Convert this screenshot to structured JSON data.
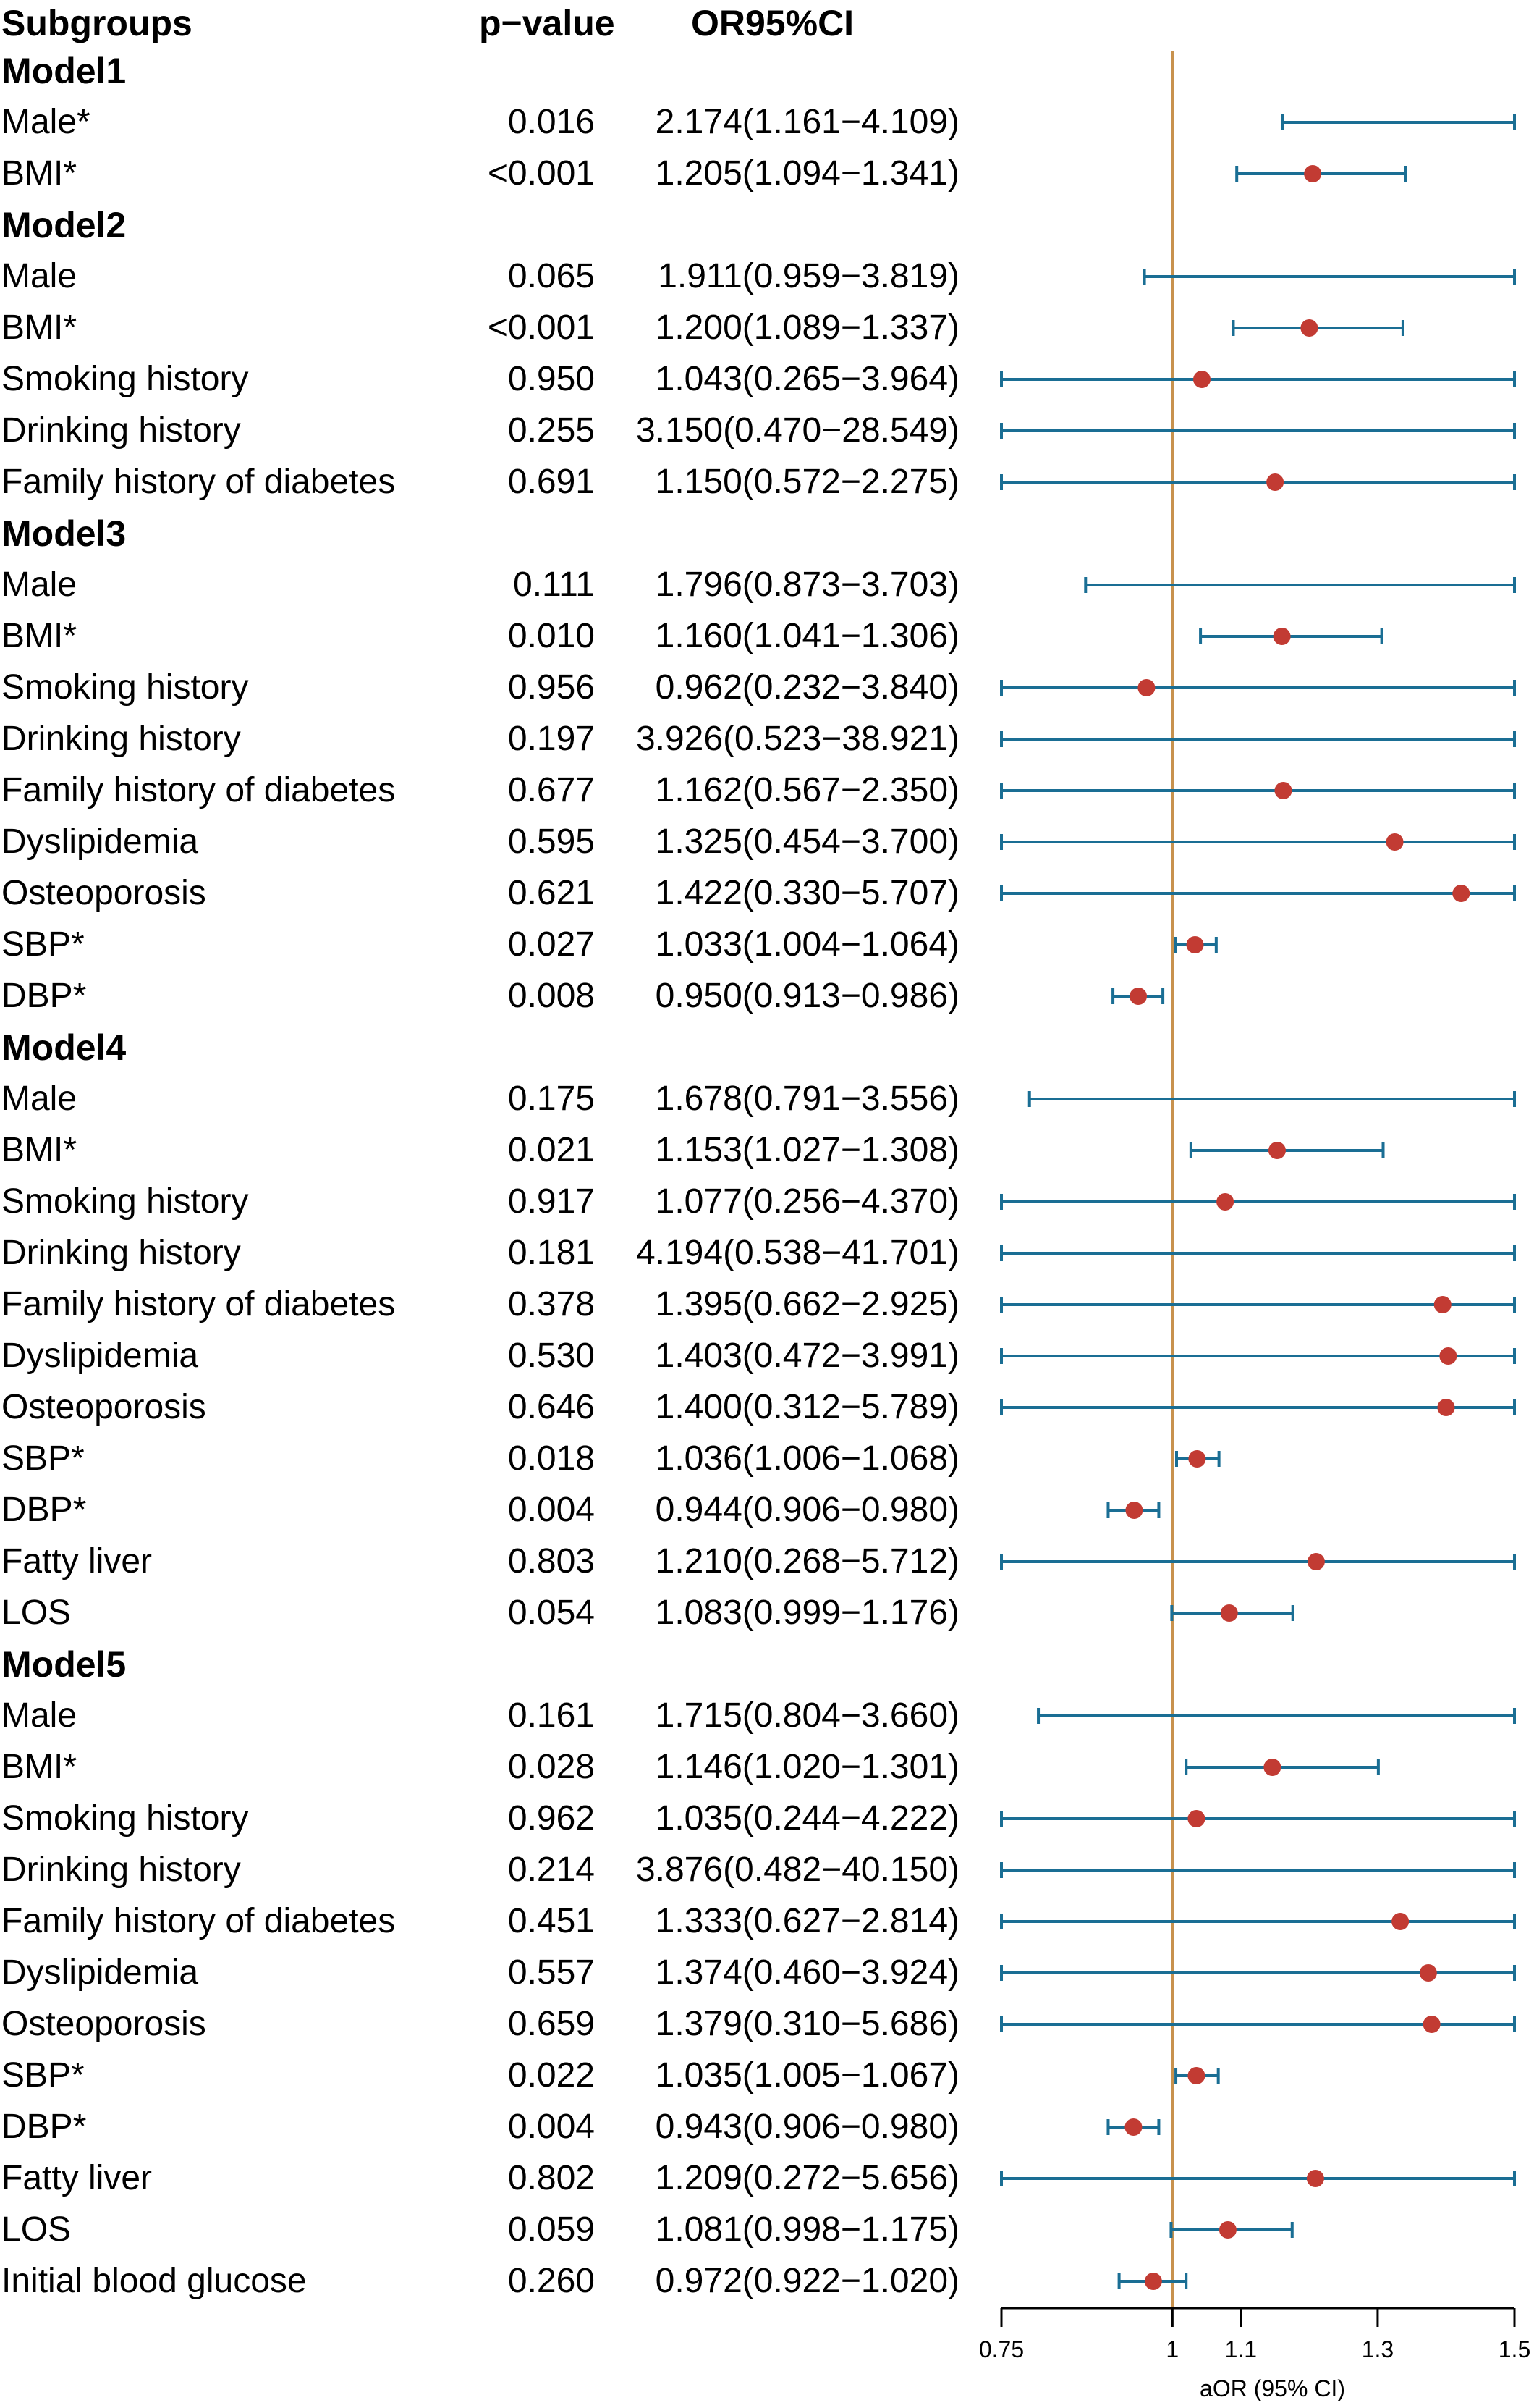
{
  "chart_data": {
    "type": "forest",
    "headers": {
      "subgroup": "Subgroups",
      "pvalue": "p−value",
      "or": "OR95%CI"
    },
    "xlabel": "aOR (95% CI)",
    "xlim": [
      0.75,
      1.5
    ],
    "reference_line": 1,
    "xticks": [
      {
        "value": 0.75,
        "label": "0.75"
      },
      {
        "value": 1,
        "label": "1"
      },
      {
        "value": 1.1,
        "label": "1.1"
      },
      {
        "value": 1.3,
        "label": "1.3"
      },
      {
        "value": 1.5,
        "label": "1.5"
      }
    ],
    "colors": {
      "ci_line": "#1a6e94",
      "point": "#c23b33",
      "reference": "#c8924e",
      "axis": "#000000"
    },
    "rows": [
      {
        "type": "group",
        "label": "Model1"
      },
      {
        "type": "item",
        "label": "Male*",
        "p": "0.016",
        "or_text": "2.174(1.161−4.109)",
        "or": 2.174,
        "lo": 1.161,
        "hi": 4.109
      },
      {
        "type": "item",
        "label": "BMI*",
        "p": "<0.001",
        "or_text": "1.205(1.094−1.341)",
        "or": 1.205,
        "lo": 1.094,
        "hi": 1.341
      },
      {
        "type": "group",
        "label": "Model2"
      },
      {
        "type": "item",
        "label": "Male",
        "p": "0.065",
        "or_text": "1.911(0.959−3.819)",
        "or": 1.911,
        "lo": 0.959,
        "hi": 3.819
      },
      {
        "type": "item",
        "label": "BMI*",
        "p": "<0.001",
        "or_text": "1.200(1.089−1.337)",
        "or": 1.2,
        "lo": 1.089,
        "hi": 1.337
      },
      {
        "type": "item",
        "label": "Smoking history",
        "p": "0.950",
        "or_text": "1.043(0.265−3.964)",
        "or": 1.043,
        "lo": 0.265,
        "hi": 3.964
      },
      {
        "type": "item",
        "label": "Drinking history",
        "p": "0.255",
        "or_text": "3.150(0.470−28.549)",
        "or": 3.15,
        "lo": 0.47,
        "hi": 28.549
      },
      {
        "type": "item",
        "label": "Family history of diabetes",
        "p": "0.691",
        "or_text": "1.150(0.572−2.275)",
        "or": 1.15,
        "lo": 0.572,
        "hi": 2.275
      },
      {
        "type": "group",
        "label": "Model3"
      },
      {
        "type": "item",
        "label": "Male",
        "p": "0.111",
        "or_text": "1.796(0.873−3.703)",
        "or": 1.796,
        "lo": 0.873,
        "hi": 3.703
      },
      {
        "type": "item",
        "label": "BMI*",
        "p": "0.010",
        "or_text": "1.160(1.041−1.306)",
        "or": 1.16,
        "lo": 1.041,
        "hi": 1.306
      },
      {
        "type": "item",
        "label": "Smoking history",
        "p": "0.956",
        "or_text": "0.962(0.232−3.840)",
        "or": 0.962,
        "lo": 0.232,
        "hi": 3.84
      },
      {
        "type": "item",
        "label": "Drinking history",
        "p": "0.197",
        "or_text": "3.926(0.523−38.921)",
        "or": 3.926,
        "lo": 0.523,
        "hi": 38.921
      },
      {
        "type": "item",
        "label": "Family history of diabetes",
        "p": "0.677",
        "or_text": "1.162(0.567−2.350)",
        "or": 1.162,
        "lo": 0.567,
        "hi": 2.35
      },
      {
        "type": "item",
        "label": "Dyslipidemia",
        "p": "0.595",
        "or_text": "1.325(0.454−3.700)",
        "or": 1.325,
        "lo": 0.454,
        "hi": 3.7
      },
      {
        "type": "item",
        "label": "Osteoporosis",
        "p": "0.621",
        "or_text": "1.422(0.330−5.707)",
        "or": 1.422,
        "lo": 0.33,
        "hi": 5.707
      },
      {
        "type": "item",
        "label": "SBP*",
        "p": "0.027",
        "or_text": "1.033(1.004−1.064)",
        "or": 1.033,
        "lo": 1.004,
        "hi": 1.064
      },
      {
        "type": "item",
        "label": "DBP*",
        "p": "0.008",
        "or_text": "0.950(0.913−0.986)",
        "or": 0.95,
        "lo": 0.913,
        "hi": 0.986
      },
      {
        "type": "group",
        "label": "Model4"
      },
      {
        "type": "item",
        "label": "Male",
        "p": "0.175",
        "or_text": "1.678(0.791−3.556)",
        "or": 1.678,
        "lo": 0.791,
        "hi": 3.556
      },
      {
        "type": "item",
        "label": "BMI*",
        "p": "0.021",
        "or_text": "1.153(1.027−1.308)",
        "or": 1.153,
        "lo": 1.027,
        "hi": 1.308
      },
      {
        "type": "item",
        "label": "Smoking history",
        "p": "0.917",
        "or_text": "1.077(0.256−4.370)",
        "or": 1.077,
        "lo": 0.256,
        "hi": 4.37
      },
      {
        "type": "item",
        "label": "Drinking history",
        "p": "0.181",
        "or_text": "4.194(0.538−41.701)",
        "or": 4.194,
        "lo": 0.538,
        "hi": 41.701
      },
      {
        "type": "item",
        "label": "Family history of diabetes",
        "p": "0.378",
        "or_text": "1.395(0.662−2.925)",
        "or": 1.395,
        "lo": 0.662,
        "hi": 2.925
      },
      {
        "type": "item",
        "label": "Dyslipidemia",
        "p": "0.530",
        "or_text": "1.403(0.472−3.991)",
        "or": 1.403,
        "lo": 0.472,
        "hi": 3.991
      },
      {
        "type": "item",
        "label": "Osteoporosis",
        "p": "0.646",
        "or_text": "1.400(0.312−5.789)",
        "or": 1.4,
        "lo": 0.312,
        "hi": 5.789
      },
      {
        "type": "item",
        "label": "SBP*",
        "p": "0.018",
        "or_text": "1.036(1.006−1.068)",
        "or": 1.036,
        "lo": 1.006,
        "hi": 1.068
      },
      {
        "type": "item",
        "label": "DBP*",
        "p": "0.004",
        "or_text": "0.944(0.906−0.980)",
        "or": 0.944,
        "lo": 0.906,
        "hi": 0.98
      },
      {
        "type": "item",
        "label": "Fatty liver",
        "p": "0.803",
        "or_text": "1.210(0.268−5.712)",
        "or": 1.21,
        "lo": 0.268,
        "hi": 5.712
      },
      {
        "type": "item",
        "label": "LOS",
        "p": "0.054",
        "or_text": "1.083(0.999−1.176)",
        "or": 1.083,
        "lo": 0.999,
        "hi": 1.176
      },
      {
        "type": "group",
        "label": "Model5"
      },
      {
        "type": "item",
        "label": "Male",
        "p": "0.161",
        "or_text": "1.715(0.804−3.660)",
        "or": 1.715,
        "lo": 0.804,
        "hi": 3.66
      },
      {
        "type": "item",
        "label": "BMI*",
        "p": "0.028",
        "or_text": "1.146(1.020−1.301)",
        "or": 1.146,
        "lo": 1.02,
        "hi": 1.301
      },
      {
        "type": "item",
        "label": "Smoking history",
        "p": "0.962",
        "or_text": "1.035(0.244−4.222)",
        "or": 1.035,
        "lo": 0.244,
        "hi": 4.222
      },
      {
        "type": "item",
        "label": "Drinking history",
        "p": "0.214",
        "or_text": "3.876(0.482−40.150)",
        "or": 3.876,
        "lo": 0.482,
        "hi": 40.15
      },
      {
        "type": "item",
        "label": "Family history of diabetes",
        "p": "0.451",
        "or_text": "1.333(0.627−2.814)",
        "or": 1.333,
        "lo": 0.627,
        "hi": 2.814
      },
      {
        "type": "item",
        "label": "Dyslipidemia",
        "p": "0.557",
        "or_text": "1.374(0.460−3.924)",
        "or": 1.374,
        "lo": 0.46,
        "hi": 3.924
      },
      {
        "type": "item",
        "label": "Osteoporosis",
        "p": "0.659",
        "or_text": "1.379(0.310−5.686)",
        "or": 1.379,
        "lo": 0.31,
        "hi": 5.686
      },
      {
        "type": "item",
        "label": "SBP*",
        "p": "0.022",
        "or_text": "1.035(1.005−1.067)",
        "or": 1.035,
        "lo": 1.005,
        "hi": 1.067
      },
      {
        "type": "item",
        "label": "DBP*",
        "p": "0.004",
        "or_text": "0.943(0.906−0.980)",
        "or": 0.943,
        "lo": 0.906,
        "hi": 0.98
      },
      {
        "type": "item",
        "label": "Fatty liver",
        "p": "0.802",
        "or_text": "1.209(0.272−5.656)",
        "or": 1.209,
        "lo": 0.272,
        "hi": 5.656
      },
      {
        "type": "item",
        "label": "LOS",
        "p": "0.059",
        "or_text": "1.081(0.998−1.175)",
        "or": 1.081,
        "lo": 0.998,
        "hi": 1.175
      },
      {
        "type": "item",
        "label": "Initial blood glucose",
        "p": "0.260",
        "or_text": "0.972(0.922−1.020)",
        "or": 0.972,
        "lo": 0.922,
        "hi": 1.02
      }
    ]
  }
}
